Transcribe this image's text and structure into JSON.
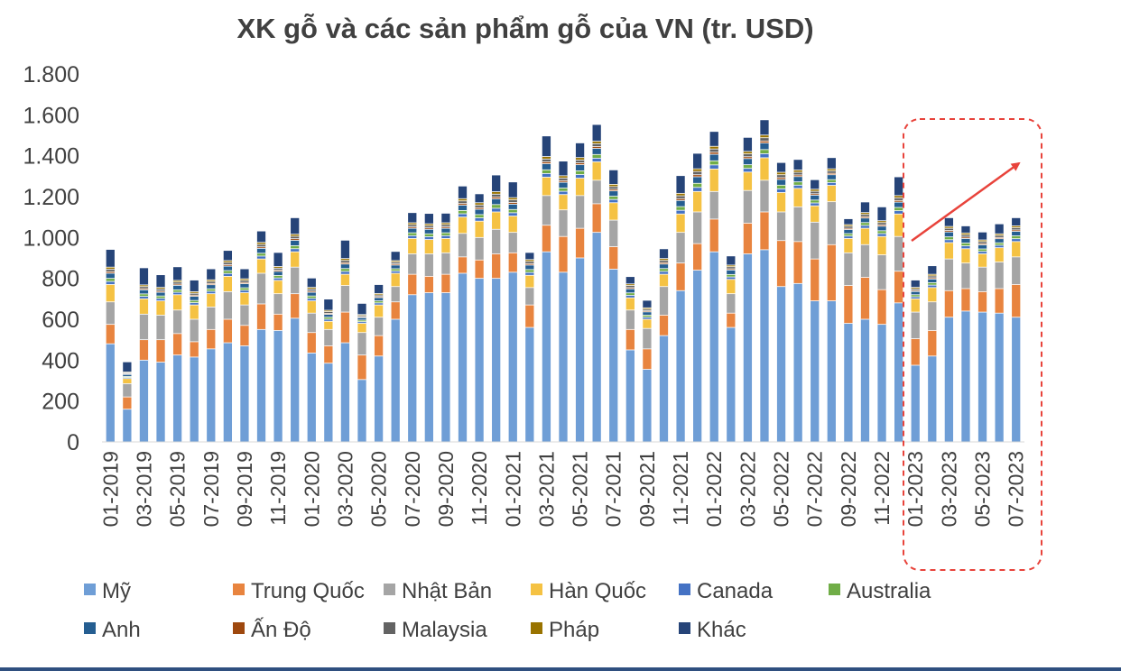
{
  "chart_data": {
    "type": "bar",
    "stacked": true,
    "title": "XK gỗ và các sản phẩm gỗ của VN (tr. USD)",
    "xlabel": "",
    "ylabel": "",
    "ylim": [
      0,
      1800
    ],
    "yticks": [
      0,
      200,
      400,
      600,
      800,
      1000,
      1200,
      1400,
      1600,
      1800
    ],
    "ytick_labels": [
      "0",
      "200",
      "400",
      "600",
      "800",
      "1.000",
      "1.200",
      "1.400",
      "1.600",
      "1.800"
    ],
    "categories": [
      "01-2019",
      "02-2019",
      "03-2019",
      "04-2019",
      "05-2019",
      "06-2019",
      "07-2019",
      "08-2019",
      "09-2019",
      "10-2019",
      "11-2019",
      "12-2019",
      "01-2020",
      "02-2020",
      "03-2020",
      "04-2020",
      "05-2020",
      "06-2020",
      "07-2020",
      "08-2020",
      "09-2020",
      "10-2020",
      "11-2020",
      "12-2020",
      "01-2021",
      "02-2021",
      "03-2021",
      "04-2021",
      "05-2021",
      "06-2021",
      "07-2021",
      "08-2021",
      "09-2021",
      "10-2021",
      "11-2021",
      "12-2021",
      "01-2022",
      "02-2022",
      "03-2022",
      "04-2022",
      "05-2022",
      "06-2022",
      "07-2022",
      "08-2022",
      "09-2022",
      "10-2022",
      "11-2022",
      "12-2022",
      "01-2023",
      "02-2023",
      "03-2023",
      "04-2023",
      "05-2023",
      "06-2023",
      "07-2023"
    ],
    "x_tick_labels": [
      "01-2019",
      "03-2019",
      "05-2019",
      "07-2019",
      "09-2019",
      "11-2019",
      "01-2020",
      "03-2020",
      "05-2020",
      "07-2020",
      "09-2020",
      "11-2020",
      "01-2021",
      "03-2021",
      "05-2021",
      "07-2021",
      "09-2021",
      "11-2021",
      "01-2022",
      "03-2022",
      "05-2022",
      "07-2022",
      "09-2022",
      "11-2022",
      "01-2023",
      "03-2023",
      "05-2023",
      "07-2023"
    ],
    "series": [
      {
        "name": "Mỹ",
        "color": "#6f9ed6",
        "values": [
          480,
          160,
          400,
          390,
          425,
          415,
          455,
          485,
          470,
          550,
          545,
          605,
          435,
          385,
          485,
          305,
          420,
          600,
          720,
          730,
          730,
          825,
          800,
          800,
          830,
          560,
          930,
          830,
          900,
          1025,
          845,
          450,
          355,
          520,
          740,
          840,
          930,
          560,
          920,
          940,
          760,
          775,
          690,
          690,
          580,
          600,
          575,
          680,
          375,
          420,
          610,
          640,
          635,
          630,
          610
        ]
      },
      {
        "name": "Trung Quốc",
        "color": "#e8843f",
        "values": [
          95,
          60,
          100,
          110,
          105,
          75,
          95,
          115,
          100,
          125,
          80,
          120,
          100,
          85,
          150,
          120,
          100,
          85,
          100,
          80,
          90,
          80,
          90,
          120,
          95,
          110,
          130,
          175,
          145,
          140,
          110,
          100,
          100,
          100,
          135,
          130,
          160,
          70,
          150,
          185,
          225,
          205,
          205,
          275,
          185,
          205,
          170,
          155,
          130,
          125,
          130,
          110,
          100,
          120,
          160
        ]
      },
      {
        "name": "Nhật Bản",
        "color": "#a5a5a5",
        "values": [
          110,
          65,
          125,
          120,
          115,
          110,
          110,
          135,
          100,
          150,
          100,
          130,
          95,
          80,
          130,
          110,
          90,
          75,
          100,
          110,
          105,
          115,
          110,
          120,
          100,
          85,
          145,
          130,
          160,
          115,
          130,
          95,
          100,
          140,
          150,
          155,
          135,
          95,
          160,
          155,
          140,
          170,
          180,
          210,
          160,
          160,
          170,
          170,
          130,
          140,
          155,
          125,
          120,
          130,
          135
        ]
      },
      {
        "name": "Hàn Quốc",
        "color": "#f5c243",
        "values": [
          85,
          25,
          75,
          70,
          75,
          70,
          65,
          75,
          60,
          70,
          65,
          75,
          60,
          40,
          55,
          45,
          60,
          65,
          75,
          70,
          70,
          80,
          80,
          85,
          80,
          60,
          90,
          75,
          85,
          90,
          85,
          60,
          45,
          60,
          90,
          100,
          110,
          70,
          90,
          110,
          95,
          90,
          80,
          80,
          70,
          80,
          90,
          110,
          65,
          70,
          80,
          70,
          65,
          70,
          75
        ]
      },
      {
        "name": "Canada",
        "color": "#4472c4",
        "values": [
          15,
          5,
          12,
          12,
          12,
          11,
          12,
          14,
          12,
          14,
          12,
          15,
          12,
          10,
          14,
          8,
          10,
          11,
          14,
          14,
          14,
          16,
          16,
          18,
          16,
          14,
          18,
          16,
          18,
          18,
          16,
          12,
          10,
          14,
          18,
          20,
          20,
          12,
          18,
          20,
          18,
          16,
          14,
          14,
          12,
          14,
          14,
          16,
          10,
          12,
          14,
          14,
          12,
          12,
          14
        ]
      },
      {
        "name": "Australia",
        "color": "#70ad47",
        "values": [
          15,
          5,
          12,
          12,
          12,
          11,
          12,
          14,
          12,
          14,
          12,
          15,
          12,
          10,
          14,
          8,
          10,
          11,
          14,
          14,
          14,
          16,
          16,
          18,
          16,
          14,
          18,
          16,
          18,
          18,
          16,
          12,
          10,
          14,
          18,
          20,
          20,
          12,
          18,
          20,
          18,
          16,
          14,
          14,
          12,
          14,
          14,
          16,
          10,
          12,
          14,
          14,
          12,
          12,
          14
        ]
      },
      {
        "name": "Anh",
        "color": "#255e91",
        "values": [
          25,
          10,
          20,
          18,
          22,
          20,
          20,
          22,
          20,
          24,
          20,
          26,
          18,
          14,
          22,
          12,
          16,
          18,
          22,
          22,
          22,
          26,
          26,
          28,
          26,
          22,
          30,
          28,
          30,
          30,
          26,
          20,
          16,
          22,
          30,
          32,
          32,
          22,
          30,
          32,
          28,
          26,
          24,
          24,
          20,
          22,
          22,
          26,
          16,
          18,
          24,
          22,
          20,
          20,
          22
        ]
      },
      {
        "name": "Ấn Độ",
        "color": "#9e480e",
        "values": [
          8,
          3,
          6,
          6,
          6,
          6,
          6,
          7,
          6,
          7,
          6,
          8,
          6,
          5,
          7,
          4,
          5,
          6,
          7,
          7,
          7,
          8,
          8,
          9,
          8,
          7,
          9,
          8,
          9,
          9,
          8,
          6,
          5,
          7,
          9,
          10,
          10,
          6,
          9,
          10,
          9,
          8,
          7,
          7,
          6,
          7,
          7,
          8,
          5,
          6,
          7,
          7,
          6,
          6,
          7
        ]
      },
      {
        "name": "Malaysia",
        "color": "#636363",
        "values": [
          12,
          5,
          10,
          10,
          10,
          9,
          10,
          11,
          10,
          12,
          10,
          12,
          10,
          8,
          11,
          6,
          8,
          9,
          11,
          11,
          11,
          13,
          13,
          14,
          13,
          11,
          14,
          13,
          14,
          14,
          13,
          10,
          8,
          11,
          14,
          16,
          16,
          10,
          14,
          16,
          14,
          13,
          12,
          12,
          10,
          11,
          11,
          13,
          8,
          9,
          11,
          11,
          10,
          10,
          11
        ]
      },
      {
        "name": "Pháp",
        "color": "#997300",
        "values": [
          10,
          4,
          8,
          8,
          8,
          8,
          8,
          9,
          8,
          10,
          8,
          10,
          8,
          7,
          9,
          5,
          7,
          7,
          9,
          9,
          9,
          11,
          11,
          12,
          11,
          9,
          12,
          11,
          12,
          12,
          11,
          8,
          7,
          9,
          12,
          13,
          13,
          8,
          12,
          13,
          12,
          11,
          10,
          10,
          8,
          9,
          9,
          11,
          7,
          8,
          9,
          9,
          8,
          8,
          9
        ]
      },
      {
        "name": "Khác",
        "color": "#264478",
        "values": [
          85,
          48,
          82,
          60,
          65,
          55,
          52,
          48,
          47,
          54,
          67,
          79,
          44,
          53,
          88,
          53,
          42,
          43,
          48,
          49,
          45,
          60,
          42,
          80,
          75,
          33,
          99,
          70,
          70,
          80,
          69,
          34,
          35,
          46,
          85,
          74,
          71,
          43,
          67,
          73,
          46,
          50,
          45,
          53,
          27,
          50,
          66,
          90,
          34,
          40,
          41,
          33,
          37,
          47,
          38
        ]
      }
    ]
  },
  "annotation": {
    "highlight_box_color": "#e8433b",
    "arrow_color": "#e8433b"
  }
}
